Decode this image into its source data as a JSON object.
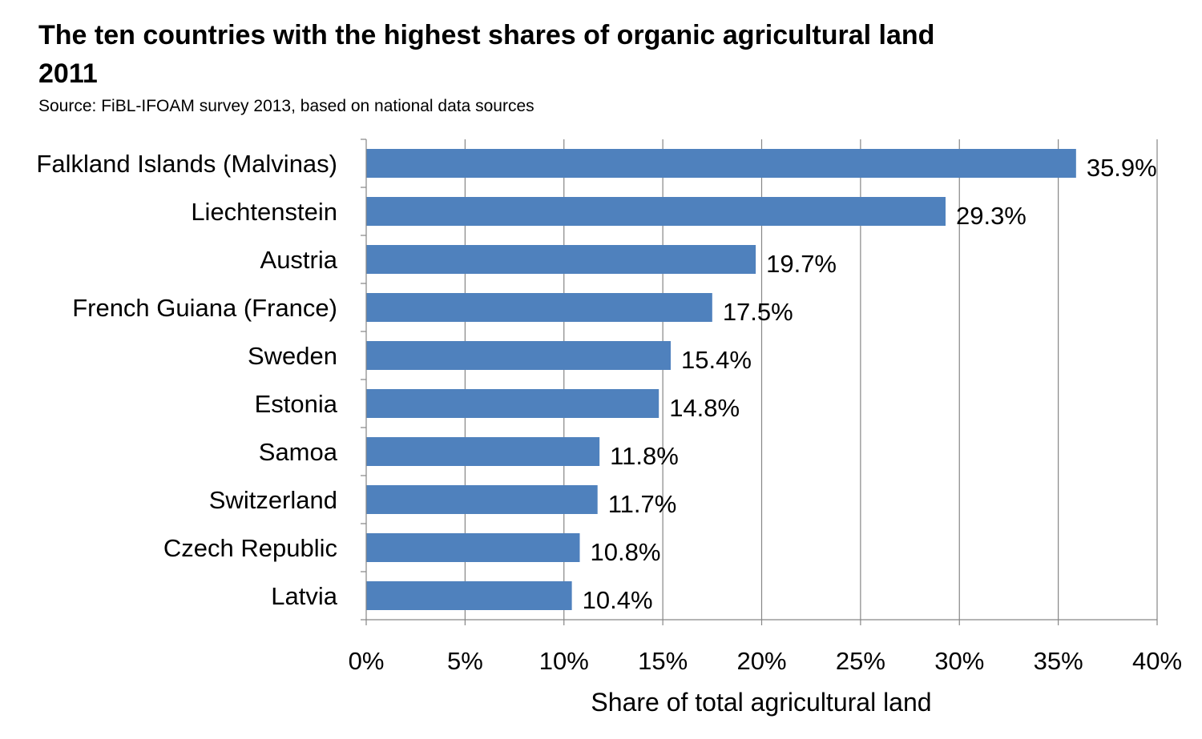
{
  "chart_data": {
    "type": "bar",
    "orientation": "horizontal",
    "title_line1": "The ten countries with the highest shares of organic agricultural land",
    "title_line2": "2011",
    "subtitle": "Source: FiBL-IFOAM survey 2013, based on national data sources",
    "xlabel": "Share of total agricultural land",
    "ylabel": "",
    "xlim": [
      0,
      40
    ],
    "x_ticks": [
      0,
      5,
      10,
      15,
      20,
      25,
      30,
      35,
      40
    ],
    "x_tick_labels": [
      "0%",
      "5%",
      "10%",
      "15%",
      "20%",
      "25%",
      "30%",
      "35%",
      "40%"
    ],
    "grid": "vertical",
    "legend": "none",
    "categories": [
      "Falkland Islands (Malvinas)",
      "Liechtenstein",
      "Austria",
      "French Guiana (France)",
      "Sweden",
      "Estonia",
      "Samoa",
      "Switzerland",
      "Czech Republic",
      "Latvia"
    ],
    "values": [
      35.9,
      29.3,
      19.7,
      17.5,
      15.4,
      14.8,
      11.8,
      11.7,
      10.8,
      10.4
    ],
    "data_labels": [
      "35.9%",
      "29.3%",
      "19.7%",
      "17.5%",
      "15.4%",
      "14.8%",
      "11.8%",
      "11.7%",
      "10.8%",
      "10.4%"
    ],
    "colors": {
      "bar": "#4f81bd",
      "grid": "#868686",
      "axis": "#868686"
    }
  }
}
